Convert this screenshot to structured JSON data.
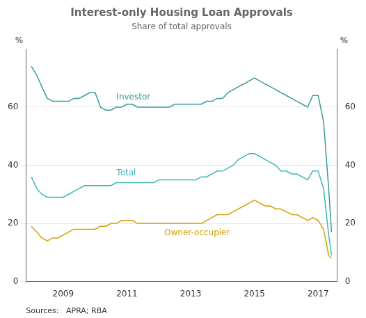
{
  "chart_data": {
    "type": "line",
    "title": "Interest-only Housing Loan Approvals",
    "subtitle": "Share of total approvals",
    "source": "Sources:   APRA; RBA",
    "ylabel": "%",
    "y2label": "%",
    "xlim": [
      2007.83,
      2017.6
    ],
    "xticks": [
      2009,
      2011,
      2013,
      2015,
      2017
    ],
    "ylim": [
      0,
      80
    ],
    "yticks": [
      0,
      20,
      40,
      60
    ],
    "y2lim": [
      0,
      80
    ],
    "y2ticks": [
      0,
      20,
      40,
      60
    ],
    "grid": "y",
    "x": [
      2008.0,
      2008.17,
      2008.33,
      2008.5,
      2008.67,
      2008.83,
      2009.0,
      2009.17,
      2009.33,
      2009.5,
      2009.67,
      2009.83,
      2010.0,
      2010.17,
      2010.33,
      2010.5,
      2010.67,
      2010.83,
      2011.0,
      2011.17,
      2011.33,
      2011.5,
      2011.67,
      2011.83,
      2012.0,
      2012.17,
      2012.33,
      2012.5,
      2012.67,
      2012.83,
      2013.0,
      2013.17,
      2013.33,
      2013.5,
      2013.67,
      2013.83,
      2014.0,
      2014.17,
      2014.33,
      2014.5,
      2014.67,
      2014.83,
      2015.0,
      2015.17,
      2015.33,
      2015.5,
      2015.67,
      2015.83,
      2016.0,
      2016.17,
      2016.33,
      2016.5,
      2016.67,
      2016.83,
      2017.0,
      2017.17,
      2017.33,
      2017.42
    ],
    "series": [
      {
        "name": "Investor",
        "color": "#3a9a9a",
        "values": [
          74,
          71,
          67,
          63,
          62,
          62,
          62,
          62,
          63,
          63,
          64,
          65,
          65,
          60,
          59,
          59,
          60,
          60,
          61,
          61,
          60,
          60,
          60,
          60,
          60,
          60,
          60,
          61,
          61,
          61,
          61,
          61,
          61,
          62,
          62,
          63,
          63,
          65,
          66,
          67,
          68,
          69,
          70,
          69,
          68,
          67,
          66,
          65,
          64,
          63,
          62,
          61,
          60,
          64,
          64,
          55,
          32,
          17
        ]
      },
      {
        "name": "Total",
        "color": "#3ab8b8",
        "values": [
          36,
          32,
          30,
          29,
          29,
          29,
          29,
          30,
          31,
          32,
          33,
          33,
          33,
          33,
          33,
          33,
          34,
          34,
          34,
          34,
          34,
          34,
          34,
          34,
          35,
          35,
          35,
          35,
          35,
          35,
          35,
          35,
          36,
          36,
          37,
          38,
          38,
          39,
          40,
          42,
          43,
          44,
          44,
          43,
          42,
          41,
          40,
          38,
          38,
          37,
          37,
          36,
          35,
          38,
          38,
          32,
          16,
          9
        ]
      },
      {
        "name": "Owner-occupier",
        "color": "#d4a000",
        "values": [
          19,
          17,
          15,
          14,
          15,
          15,
          16,
          17,
          18,
          18,
          18,
          18,
          18,
          19,
          19,
          20,
          20,
          21,
          21,
          21,
          20,
          20,
          20,
          20,
          20,
          20,
          20,
          20,
          20,
          20,
          20,
          20,
          20,
          21,
          22,
          23,
          23,
          23,
          24,
          25,
          26,
          27,
          28,
          27,
          26,
          26,
          25,
          25,
          24,
          23,
          23,
          22,
          21,
          22,
          21,
          18,
          9,
          8
        ]
      }
    ]
  }
}
